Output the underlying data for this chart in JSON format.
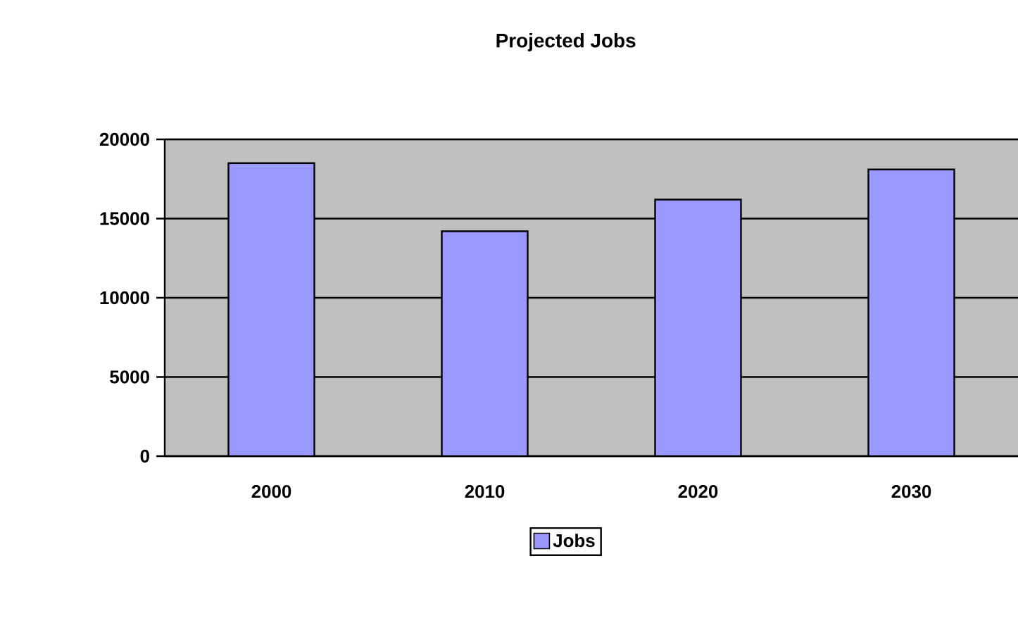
{
  "chart_data": {
    "type": "bar",
    "title": "Projected Jobs",
    "categories": [
      "2000",
      "2010",
      "2020",
      "2030"
    ],
    "series": [
      {
        "name": "Jobs",
        "color": "#9999ff",
        "values": [
          18500,
          14200,
          16200,
          18100
        ]
      }
    ],
    "ylim": [
      0,
      20000
    ],
    "yticks": [
      0,
      5000,
      10000,
      15000,
      20000
    ],
    "grid": "y",
    "legend": "bottom"
  }
}
